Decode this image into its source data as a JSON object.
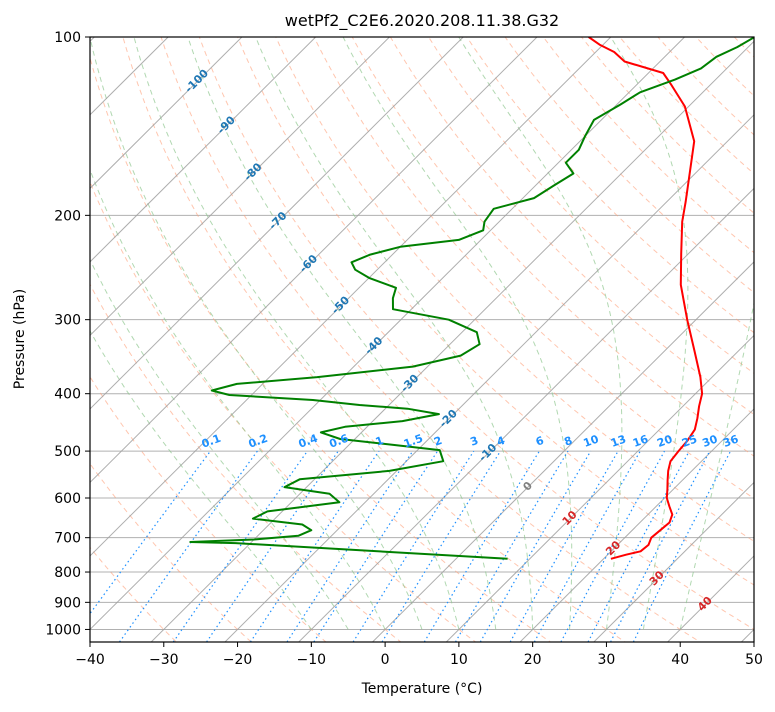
{
  "chart_data": {
    "type": "line",
    "subtype": "skew-t log-p diagram",
    "title": "wetPf2_C2E6.2020.208.11.38.G32",
    "xlabel": "Temperature (°C)",
    "ylabel": "Pressure (hPa)",
    "xlim": [
      -40,
      50
    ],
    "ylim": [
      1050,
      100
    ],
    "y_scale": "log",
    "grid": true,
    "x_ticks": [
      "−40",
      "−30",
      "−20",
      "−10",
      "0",
      "10",
      "20",
      "30",
      "40",
      "50"
    ],
    "x_tick_values": [
      -40,
      -30,
      -20,
      -10,
      0,
      10,
      20,
      30,
      40,
      50
    ],
    "y_ticks": [
      "100",
      "200",
      "300",
      "400",
      "500",
      "600",
      "700",
      "800",
      "900",
      "1000"
    ],
    "y_tick_values": [
      100,
      200,
      300,
      400,
      500,
      600,
      700,
      800,
      900,
      1000
    ],
    "series": [
      {
        "color": "#ff0000",
        "points": [
          [
            21,
            760
          ],
          [
            22.5,
            748
          ],
          [
            24,
            738
          ],
          [
            24.2,
            720
          ],
          [
            23.6,
            700
          ],
          [
            23.8,
            680
          ],
          [
            24,
            660
          ],
          [
            23.3,
            640
          ],
          [
            21.8,
            620
          ],
          [
            20.3,
            600
          ],
          [
            19.2,
            580
          ],
          [
            18,
            560
          ],
          [
            16.8,
            540
          ],
          [
            15.8,
            520
          ],
          [
            15.5,
            500
          ],
          [
            15.3,
            480
          ],
          [
            14.8,
            460
          ],
          [
            13.6,
            440
          ],
          [
            12.2,
            420
          ],
          [
            10.9,
            400
          ],
          [
            8.4,
            375
          ],
          [
            4.2,
            340
          ],
          [
            -1.2,
            300
          ],
          [
            -6.8,
            262
          ],
          [
            -11,
            232
          ],
          [
            -15.2,
            205
          ],
          [
            -17.4,
            190
          ],
          [
            -21.1,
            168
          ],
          [
            -24.5,
            150
          ],
          [
            -30.5,
            131
          ],
          [
            -35.5,
            120
          ],
          [
            -38,
            115
          ],
          [
            -44.8,
            110
          ],
          [
            -47.5,
            106
          ],
          [
            -50.5,
            103
          ],
          [
            -53,
            100
          ]
        ]
      },
      {
        "color": "#008000",
        "points": [
          [
            7,
            760
          ],
          [
            -32,
            715
          ],
          [
            -38.3,
            712
          ],
          [
            -30,
            705
          ],
          [
            -24.5,
            695
          ],
          [
            -23.5,
            680
          ],
          [
            -25.5,
            665
          ],
          [
            -33,
            650
          ],
          [
            -32,
            632
          ],
          [
            -23.5,
            610
          ],
          [
            -26,
            590
          ],
          [
            -33,
            575
          ],
          [
            -32,
            558
          ],
          [
            -21,
            540
          ],
          [
            -15,
            520
          ],
          [
            -17,
            498
          ],
          [
            -24,
            488
          ],
          [
            -32,
            477
          ],
          [
            -35.5,
            465
          ],
          [
            -33,
            455
          ],
          [
            -26,
            445
          ],
          [
            -22,
            433
          ],
          [
            -27,
            424
          ],
          [
            -34,
            418
          ],
          [
            -41,
            410
          ],
          [
            -53,
            402
          ],
          [
            -56,
            395
          ],
          [
            -53.5,
            385
          ],
          [
            -43.5,
            375
          ],
          [
            -32,
            360
          ],
          [
            -27,
            345
          ],
          [
            -26,
            330
          ],
          [
            -28,
            315
          ],
          [
            -33.5,
            300
          ],
          [
            -42.5,
            288
          ],
          [
            -44,
            276
          ],
          [
            -45,
            265
          ],
          [
            -50,
            255
          ],
          [
            -53,
            247
          ],
          [
            -54.5,
            240
          ],
          [
            -53,
            233
          ],
          [
            -50,
            226
          ],
          [
            -43,
            220
          ],
          [
            -41,
            212
          ],
          [
            -42,
            205
          ],
          [
            -42.5,
            195
          ],
          [
            -38.5,
            187
          ],
          [
            -37.5,
            178
          ],
          [
            -36.5,
            170
          ],
          [
            -39,
            163
          ],
          [
            -39,
            155
          ],
          [
            -40,
            147
          ],
          [
            -41,
            138
          ],
          [
            -39.5,
            130
          ],
          [
            -38.5,
            124
          ],
          [
            -35.5,
            118
          ],
          [
            -33.5,
            113
          ],
          [
            -33,
            108
          ],
          [
            -31.5,
            104
          ],
          [
            -30.5,
            100
          ]
        ]
      }
    ],
    "isotherm_labels": [
      "-100",
      "-90",
      "-80",
      "-70",
      "-60",
      "-50",
      "-40",
      "-30",
      "-20",
      "-10",
      "0",
      "10",
      "20",
      "30",
      "40"
    ],
    "mixing_ratio_labels": [
      "0.1",
      "0.2",
      "0.4",
      "0.6",
      "1",
      "1.5",
      "2",
      "3",
      "4",
      "6",
      "8",
      "10",
      "13",
      "16",
      "20",
      "25",
      "30",
      "36"
    ]
  },
  "colors": {
    "temperature": "#ff0000",
    "dewpoint": "#008000",
    "isotherm_label_cold": "#1f77b4",
    "isotherm_label_zero": "#808080",
    "isotherm_label_warm": "#d62728",
    "mixing_ratio": "#1e90ff",
    "dry_adiabat": "#ffa07a",
    "moist_adiabat": "#90c890",
    "isotherm": "#a0a0a0"
  }
}
